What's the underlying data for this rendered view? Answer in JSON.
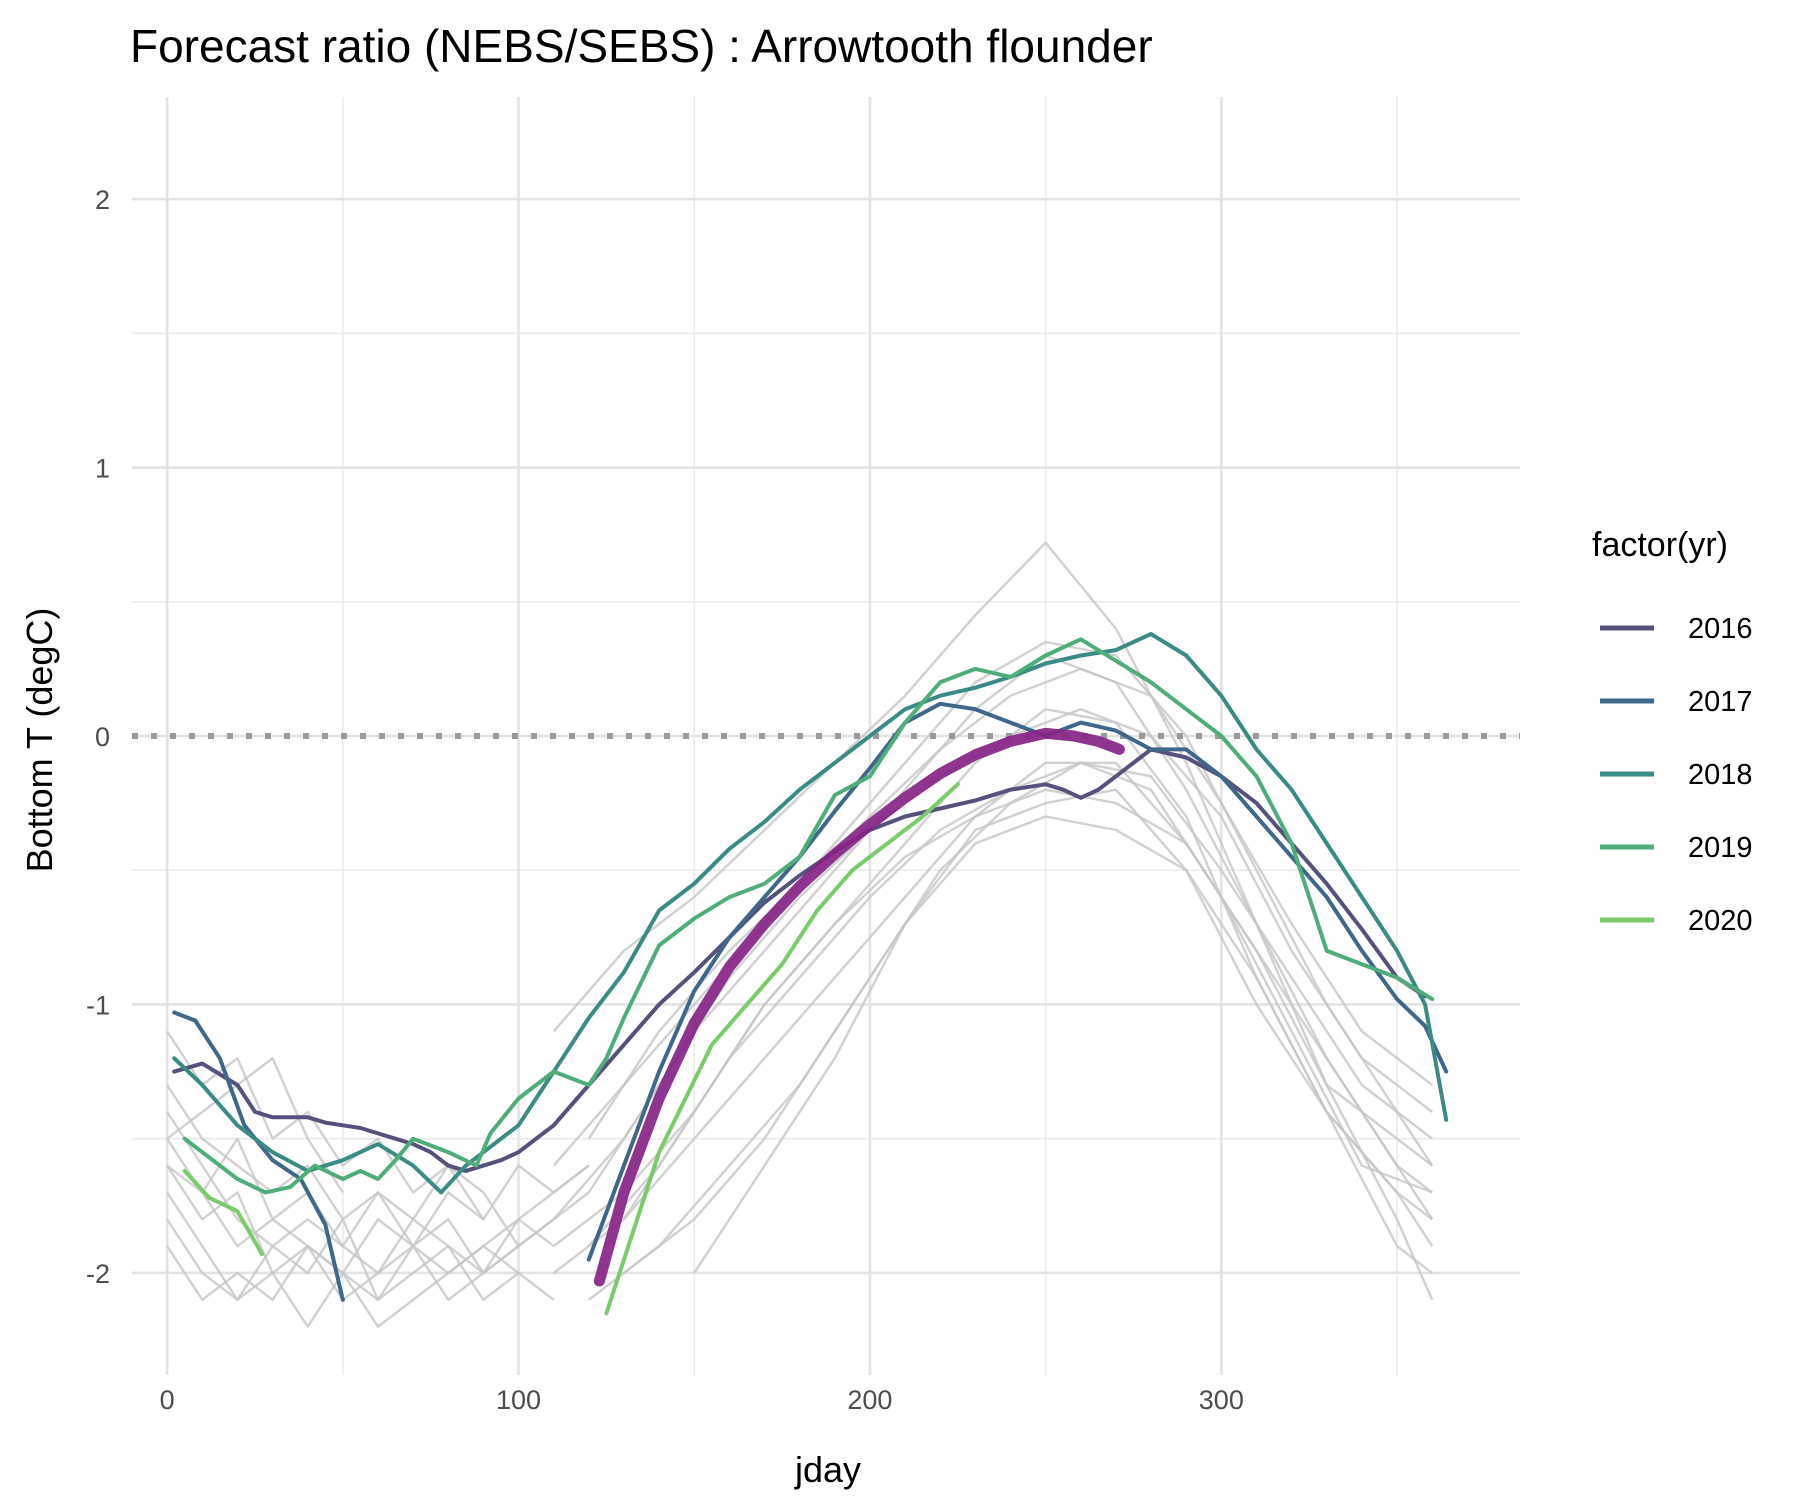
{
  "chart_data": {
    "type": "line",
    "title": "Forecast ratio (NEBS/SEBS) : Arrowtooth flounder",
    "xlabel": "jday",
    "ylabel": "Bottom T (degC)",
    "xlim": [
      -10,
      385
    ],
    "ylim": [
      -2.38,
      2.38
    ],
    "x_ticks": [
      0,
      100,
      200,
      300
    ],
    "x_minor_ticks": [
      50,
      150,
      250,
      350
    ],
    "y_ticks": [
      -2,
      -1,
      0,
      1,
      2
    ],
    "y_minor_ticks": [
      -1.5,
      -0.5,
      0.5,
      1.5
    ],
    "grid": true,
    "reference_line": {
      "y": 0,
      "style": "dotted",
      "color": "#999999"
    },
    "legend": {
      "title": "factor(yr)",
      "position": "right",
      "entries": [
        "2016",
        "2017",
        "2018",
        "2019",
        "2020"
      ]
    },
    "background_series_color": "#c6c6c6",
    "background_series": [
      {
        "x": [
          0,
          10,
          20,
          30,
          40,
          50,
          60,
          70,
          80,
          90,
          100,
          110,
          120
        ],
        "y": [
          -1.4,
          -1.6,
          -1.8,
          -1.9,
          -1.8,
          -1.9,
          -2.0,
          -1.9,
          -1.8,
          -2.0,
          -1.9,
          -1.8,
          -1.7
        ]
      },
      {
        "x": [
          0,
          10,
          20,
          30,
          40,
          50,
          60,
          70,
          80,
          90,
          100
        ],
        "y": [
          -1.6,
          -1.8,
          -1.7,
          -2.0,
          -1.9,
          -2.1,
          -2.0,
          -1.8,
          -1.9,
          -2.1,
          -2.0
        ]
      },
      {
        "x": [
          0,
          10,
          20,
          30,
          40,
          50,
          60,
          70,
          80,
          90,
          100,
          110
        ],
        "y": [
          -1.7,
          -1.9,
          -2.1,
          -1.9,
          -2.0,
          -1.8,
          -2.1,
          -2.0,
          -1.9,
          -2.0,
          -1.8,
          -1.9
        ]
      },
      {
        "x": [
          0,
          10,
          20,
          30,
          40,
          50,
          60,
          70,
          80,
          90,
          100,
          110,
          120
        ],
        "y": [
          -1.3,
          -1.5,
          -1.6,
          -1.7,
          -1.6,
          -1.8,
          -1.7,
          -1.9,
          -1.7,
          -1.8,
          -1.6,
          -1.7,
          -1.6
        ]
      },
      {
        "x": [
          0,
          10,
          20,
          30,
          40,
          50,
          60,
          70,
          80,
          90,
          100
        ],
        "y": [
          -1.8,
          -2.0,
          -2.1,
          -2.0,
          -2.2,
          -2.0,
          -2.1,
          -1.9,
          -2.1,
          -2.0,
          -1.9
        ]
      },
      {
        "x": [
          0,
          10,
          20,
          30,
          40,
          50,
          60,
          70,
          80,
          90,
          100,
          110,
          120
        ],
        "y": [
          -1.5,
          -1.7,
          -1.9,
          -1.8,
          -1.9,
          -2.0,
          -1.8,
          -1.9,
          -2.0,
          -1.9,
          -1.8,
          -1.7,
          -1.6
        ]
      },
      {
        "x": [
          0,
          10,
          20,
          30,
          40,
          50,
          60,
          70,
          80,
          90
        ],
        "y": [
          -1.1,
          -1.3,
          -1.2,
          -1.5,
          -1.4,
          -1.6,
          -1.5,
          -1.7,
          -1.6,
          -1.8
        ]
      },
      {
        "x": [
          0,
          10,
          20,
          30,
          40,
          50,
          60,
          70,
          80,
          90,
          100,
          110
        ],
        "y": [
          -1.9,
          -2.1,
          -2.0,
          -2.1,
          -1.9,
          -2.0,
          -2.2,
          -2.1,
          -2.0,
          -1.9,
          -2.0,
          -2.1
        ]
      },
      {
        "x": [
          0,
          10,
          20,
          30,
          40,
          50,
          60,
          70,
          80,
          90,
          100,
          110
        ],
        "y": [
          -1.6,
          -1.7,
          -1.5,
          -1.8,
          -1.7,
          -1.9,
          -1.7,
          -1.8,
          -1.6,
          -1.7,
          -1.9,
          -1.8
        ]
      },
      {
        "x": [
          0,
          10,
          20,
          30,
          40,
          50
        ],
        "y": [
          -1.5,
          -1.4,
          -1.3,
          -1.2,
          -1.5,
          -1.7
        ]
      },
      {
        "x": [
          110,
          130,
          150,
          170,
          190,
          210,
          230,
          250,
          270,
          290,
          310,
          330,
          350,
          360
        ],
        "y": [
          -1.1,
          -0.8,
          -0.6,
          -0.35,
          -0.1,
          0.15,
          0.45,
          0.72,
          0.4,
          -0.1,
          -0.7,
          -1.3,
          -1.8,
          -2.1
        ]
      },
      {
        "x": [
          110,
          130,
          150,
          170,
          190,
          210,
          230,
          250,
          270,
          290,
          310,
          330,
          350,
          360
        ],
        "y": [
          -1.8,
          -1.5,
          -1.1,
          -0.8,
          -0.5,
          -0.2,
          0.1,
          0.3,
          0.2,
          -0.2,
          -0.7,
          -1.2,
          -1.6,
          -1.8
        ]
      },
      {
        "x": [
          110,
          130,
          150,
          170,
          190,
          210,
          230,
          250,
          270,
          290,
          310,
          330,
          350,
          360
        ],
        "y": [
          -1.9,
          -1.7,
          -1.4,
          -1.0,
          -0.7,
          -0.4,
          -0.1,
          0.1,
          0.05,
          -0.3,
          -0.9,
          -1.4,
          -1.7,
          -1.9
        ]
      },
      {
        "x": [
          110,
          130,
          150,
          170,
          190,
          210,
          230,
          250,
          270,
          290,
          310,
          330,
          350,
          360
        ],
        "y": [
          -2.0,
          -1.8,
          -1.5,
          -1.2,
          -0.9,
          -0.6,
          -0.3,
          -0.1,
          -0.1,
          -0.4,
          -0.8,
          -1.3,
          -1.5,
          -1.6
        ]
      },
      {
        "x": [
          110,
          130,
          150,
          170,
          190,
          210,
          230,
          250,
          270,
          290,
          310,
          330,
          350,
          360
        ],
        "y": [
          -1.6,
          -1.3,
          -1.0,
          -0.7,
          -0.4,
          -0.1,
          0.2,
          0.35,
          0.3,
          0.0,
          -0.5,
          -1.0,
          -1.4,
          -1.6
        ]
      },
      {
        "x": [
          120,
          140,
          160,
          180,
          200,
          220,
          240,
          260,
          280,
          300,
          320,
          340,
          360
        ],
        "y": [
          -2.1,
          -1.9,
          -1.6,
          -1.3,
          -0.9,
          -0.5,
          -0.25,
          -0.1,
          -0.2,
          -0.6,
          -1.1,
          -1.6,
          -1.7
        ]
      },
      {
        "x": [
          120,
          140,
          160,
          180,
          200,
          220,
          240,
          260,
          280,
          300,
          320,
          340,
          360
        ],
        "y": [
          -1.9,
          -1.6,
          -1.2,
          -0.9,
          -0.6,
          -0.35,
          -0.2,
          -0.1,
          -0.15,
          -0.5,
          -0.9,
          -1.3,
          -1.5
        ]
      },
      {
        "x": [
          120,
          140,
          160,
          180,
          200,
          220,
          240,
          260,
          280,
          300,
          320,
          340,
          360
        ],
        "y": [
          -1.7,
          -1.3,
          -0.9,
          -0.6,
          -0.35,
          -0.15,
          0.0,
          0.1,
          0.0,
          -0.3,
          -0.8,
          -1.2,
          -1.4
        ]
      },
      {
        "x": [
          130,
          150,
          170,
          190,
          210,
          230,
          250,
          270,
          290,
          310,
          330,
          350,
          360
        ],
        "y": [
          -2.0,
          -1.8,
          -1.5,
          -1.1,
          -0.7,
          -0.4,
          -0.3,
          -0.35,
          -0.5,
          -0.9,
          -1.4,
          -1.9,
          -2.0
        ]
      },
      {
        "x": [
          130,
          150,
          170,
          190,
          210,
          230,
          250,
          270,
          290,
          310,
          330,
          350,
          360
        ],
        "y": [
          -1.8,
          -1.4,
          -1.0,
          -0.7,
          -0.45,
          -0.3,
          -0.2,
          -0.25,
          -0.4,
          -0.8,
          -1.2,
          -1.6,
          -1.7
        ]
      },
      {
        "x": [
          150,
          170,
          190,
          210,
          230,
          250,
          270,
          290,
          310,
          330,
          350,
          360
        ],
        "y": [
          -2.0,
          -1.6,
          -1.2,
          -0.7,
          -0.35,
          -0.25,
          -0.2,
          -0.5,
          -1.0,
          -1.4,
          -1.7,
          -1.8
        ]
      },
      {
        "x": [
          120,
          140,
          160,
          180,
          200,
          220,
          240,
          260,
          280,
          300,
          320,
          340,
          360
        ],
        "y": [
          -1.5,
          -1.1,
          -0.8,
          -0.55,
          -0.3,
          -0.05,
          0.15,
          0.25,
          0.15,
          -0.25,
          -0.7,
          -1.1,
          -1.3
        ]
      }
    ],
    "series": [
      {
        "name": "2016",
        "color": "#55517d",
        "x": [
          2,
          10,
          20,
          25,
          30,
          35,
          40,
          45,
          50,
          55,
          60,
          65,
          70,
          75,
          80,
          85,
          90,
          95,
          100,
          110,
          120,
          130,
          140,
          150,
          160,
          170,
          180,
          190,
          200,
          210,
          220,
          230,
          240,
          250,
          255,
          260,
          265,
          270,
          280,
          290,
          300,
          310,
          320,
          330,
          340,
          350,
          358
        ],
        "y": [
          -1.25,
          -1.22,
          -1.3,
          -1.4,
          -1.42,
          -1.42,
          -1.42,
          -1.44,
          -1.45,
          -1.46,
          -1.48,
          -1.5,
          -1.52,
          -1.55,
          -1.6,
          -1.62,
          -1.6,
          -1.58,
          -1.55,
          -1.45,
          -1.3,
          -1.15,
          -1.0,
          -0.88,
          -0.75,
          -0.62,
          -0.52,
          -0.43,
          -0.35,
          -0.3,
          -0.27,
          -0.24,
          -0.2,
          -0.18,
          -0.2,
          -0.23,
          -0.2,
          -0.15,
          -0.05,
          -0.08,
          -0.15,
          -0.25,
          -0.4,
          -0.55,
          -0.72,
          -0.9,
          -0.97
        ]
      },
      {
        "name": "2017",
        "color": "#3f6789",
        "x": [
          2,
          8,
          15,
          22,
          30,
          38,
          45,
          50,
          120,
          130,
          140,
          150,
          160,
          170,
          180,
          190,
          200,
          210,
          220,
          230,
          240,
          250,
          260,
          270,
          280,
          290,
          300,
          310,
          320,
          330,
          340,
          350,
          358,
          364
        ],
        "y": [
          -1.03,
          -1.06,
          -1.2,
          -1.45,
          -1.58,
          -1.65,
          -1.82,
          -2.1,
          -1.95,
          -1.6,
          -1.25,
          -0.95,
          -0.75,
          -0.6,
          -0.45,
          -0.28,
          -0.12,
          0.05,
          0.12,
          0.1,
          0.05,
          0.0,
          0.05,
          0.02,
          -0.05,
          -0.05,
          -0.15,
          -0.3,
          -0.45,
          -0.6,
          -0.8,
          -0.98,
          -1.08,
          -1.25
        ]
      },
      {
        "name": "2018",
        "color": "#3a8a86",
        "x": [
          2,
          10,
          20,
          30,
          40,
          50,
          60,
          70,
          78,
          85,
          90,
          100,
          110,
          120,
          130,
          140,
          150,
          160,
          170,
          180,
          190,
          200,
          210,
          220,
          230,
          240,
          250,
          260,
          270,
          280,
          290,
          300,
          310,
          320,
          330,
          340,
          350,
          358,
          364
        ],
        "y": [
          -1.2,
          -1.3,
          -1.45,
          -1.55,
          -1.62,
          -1.58,
          -1.52,
          -1.6,
          -1.7,
          -1.6,
          -1.55,
          -1.45,
          -1.25,
          -1.05,
          -0.88,
          -0.65,
          -0.55,
          -0.42,
          -0.32,
          -0.2,
          -0.1,
          0.0,
          0.1,
          0.15,
          0.18,
          0.22,
          0.27,
          0.3,
          0.32,
          0.38,
          0.3,
          0.15,
          -0.05,
          -0.2,
          -0.4,
          -0.6,
          -0.8,
          -1.0,
          -1.43
        ]
      },
      {
        "name": "2019",
        "color": "#4fad79",
        "x": [
          5,
          10,
          20,
          28,
          35,
          42,
          50,
          55,
          60,
          65,
          70,
          80,
          88,
          92,
          100,
          110,
          120,
          125,
          130,
          140,
          150,
          160,
          170,
          180,
          190,
          200,
          210,
          220,
          230,
          240,
          250,
          260,
          270,
          280,
          290,
          300,
          310,
          320,
          325,
          330,
          340,
          350,
          360
        ],
        "y": [
          -1.5,
          -1.55,
          -1.65,
          -1.7,
          -1.68,
          -1.6,
          -1.65,
          -1.62,
          -1.65,
          -1.58,
          -1.5,
          -1.55,
          -1.6,
          -1.48,
          -1.35,
          -1.25,
          -1.3,
          -1.2,
          -1.05,
          -0.78,
          -0.68,
          -0.6,
          -0.55,
          -0.45,
          -0.22,
          -0.15,
          0.05,
          0.2,
          0.25,
          0.22,
          0.3,
          0.36,
          0.28,
          0.2,
          0.1,
          0.0,
          -0.15,
          -0.4,
          -0.6,
          -0.8,
          -0.85,
          -0.9,
          -0.98
        ]
      },
      {
        "name": "2020",
        "color": "#7acc6b",
        "x": [
          5,
          12,
          20,
          27,
          125,
          140,
          155,
          165,
          175,
          185,
          195,
          205,
          215,
          225
        ],
        "y": [
          -1.62,
          -1.72,
          -1.77,
          -1.93,
          -2.15,
          -1.55,
          -1.15,
          -1.0,
          -0.85,
          -0.65,
          -0.5,
          -0.4,
          -0.3,
          -0.18
        ]
      }
    ],
    "forecast_series": {
      "color": "#852385",
      "x": [
        123,
        130,
        140,
        150,
        160,
        170,
        180,
        190,
        200,
        210,
        220,
        230,
        240,
        250,
        258,
        265,
        271
      ],
      "y": [
        -2.03,
        -1.7,
        -1.35,
        -1.07,
        -0.86,
        -0.7,
        -0.56,
        -0.44,
        -0.33,
        -0.23,
        -0.14,
        -0.07,
        -0.02,
        0.01,
        0.0,
        -0.02,
        -0.05
      ]
    }
  }
}
